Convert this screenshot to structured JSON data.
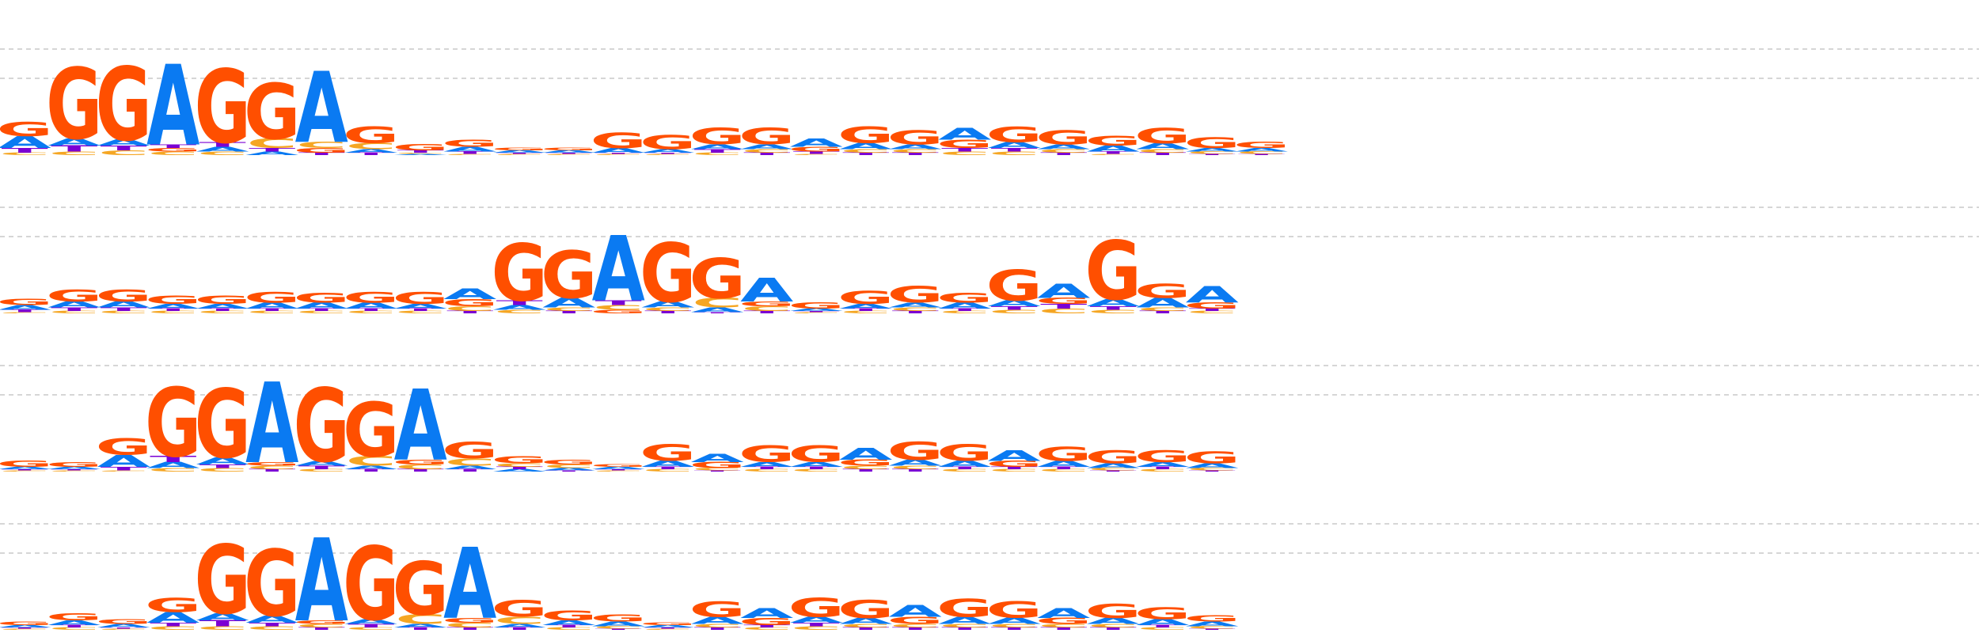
{
  "colors": {
    "A": "#0a7af2",
    "C": "#f5a623",
    "G": "#ff4f00",
    "T": "#7b00d4",
    "grid": "#c8c8c8",
    "background": "#ffffff"
  },
  "chart_data": {
    "type": "sequence-logo",
    "alphabet": [
      "A",
      "C",
      "G",
      "T"
    ],
    "grid": true,
    "rows": [
      {
        "positions": [
          {
            "A": 0.1,
            "C": 0.02,
            "G": 0.12,
            "T": 0.04
          },
          {
            "A": 0.06,
            "C": 0.03,
            "G": 0.6,
            "T": 0.05
          },
          {
            "A": 0.05,
            "C": 0.04,
            "G": 0.62,
            "T": 0.04
          },
          {
            "A": 0.68,
            "C": 0.03,
            "G": 0.03,
            "T": 0.03
          },
          {
            "A": 0.04,
            "C": 0.03,
            "G": 0.62,
            "T": 0.04
          },
          {
            "A": 0.03,
            "C": 0.08,
            "G": 0.47,
            "T": 0.03
          },
          {
            "A": 0.6,
            "C": 0.05,
            "G": 0.04,
            "T": 0.02
          },
          {
            "A": 0.03,
            "C": 0.05,
            "G": 0.14,
            "T": 0.02
          },
          {
            "A": 0.01,
            "C": 0.01,
            "G": 0.05,
            "T": 0.02
          },
          {
            "A": 0.04,
            "C": 0.01,
            "G": 0.06,
            "T": 0.02
          },
          {
            "A": 0.02,
            "C": 0.01,
            "G": 0.02,
            "T": 0.01
          },
          {
            "A": 0.02,
            "C": 0.01,
            "G": 0.02,
            "T": 0.01
          },
          {
            "A": 0.04,
            "C": 0.01,
            "G": 0.13,
            "T": 0.01
          },
          {
            "A": 0.03,
            "C": 0.01,
            "G": 0.12,
            "T": 0.01
          },
          {
            "A": 0.04,
            "C": 0.02,
            "G": 0.14,
            "T": 0.03
          },
          {
            "A": 0.04,
            "C": 0.03,
            "G": 0.14,
            "T": 0.02
          },
          {
            "A": 0.07,
            "C": 0.01,
            "G": 0.04,
            "T": 0.02
          },
          {
            "A": 0.05,
            "C": 0.03,
            "G": 0.14,
            "T": 0.02
          },
          {
            "A": 0.04,
            "C": 0.03,
            "G": 0.12,
            "T": 0.02
          },
          {
            "A": 0.1,
            "C": 0.03,
            "G": 0.07,
            "T": 0.03
          },
          {
            "A": 0.05,
            "C": 0.03,
            "G": 0.13,
            "T": 0.03
          },
          {
            "A": 0.04,
            "C": 0.03,
            "G": 0.12,
            "T": 0.02
          },
          {
            "A": 0.05,
            "C": 0.01,
            "G": 0.08,
            "T": 0.02
          },
          {
            "A": 0.05,
            "C": 0.03,
            "G": 0.13,
            "T": 0.02
          },
          {
            "A": 0.03,
            "C": 0.02,
            "G": 0.09,
            "T": 0.01
          },
          {
            "A": 0.03,
            "C": 0.02,
            "G": 0.05,
            "T": 0.01
          }
        ]
      },
      {
        "positions": [
          {
            "A": 0.04,
            "C": 0.01,
            "G": 0.05,
            "T": 0.02
          },
          {
            "A": 0.05,
            "C": 0.02,
            "G": 0.1,
            "T": 0.03
          },
          {
            "A": 0.05,
            "C": 0.02,
            "G": 0.1,
            "T": 0.03
          },
          {
            "A": 0.04,
            "C": 0.02,
            "G": 0.07,
            "T": 0.02
          },
          {
            "A": 0.04,
            "C": 0.02,
            "G": 0.07,
            "T": 0.02
          },
          {
            "A": 0.05,
            "C": 0.02,
            "G": 0.09,
            "T": 0.02
          },
          {
            "A": 0.05,
            "C": 0.02,
            "G": 0.08,
            "T": 0.02
          },
          {
            "A": 0.05,
            "C": 0.02,
            "G": 0.09,
            "T": 0.02
          },
          {
            "A": 0.04,
            "C": 0.02,
            "G": 0.1,
            "T": 0.02
          },
          {
            "A": 0.09,
            "C": 0.04,
            "G": 0.06,
            "T": 0.02
          },
          {
            "A": 0.04,
            "C": 0.03,
            "G": 0.48,
            "T": 0.04
          },
          {
            "A": 0.08,
            "C": 0.03,
            "G": 0.4,
            "T": 0.02
          },
          {
            "A": 0.55,
            "C": 0.04,
            "G": 0.03,
            "T": 0.04
          },
          {
            "A": 0.05,
            "C": 0.03,
            "G": 0.5,
            "T": 0.02
          },
          {
            "A": 0.04,
            "C": 0.08,
            "G": 0.34,
            "T": 0.01
          },
          {
            "A": 0.2,
            "C": 0.04,
            "G": 0.04,
            "T": 0.02
          },
          {
            "A": 0.02,
            "C": 0.01,
            "G": 0.05,
            "T": 0.01
          },
          {
            "A": 0.04,
            "C": 0.02,
            "G": 0.11,
            "T": 0.02
          },
          {
            "A": 0.04,
            "C": 0.03,
            "G": 0.14,
            "T": 0.02
          },
          {
            "A": 0.05,
            "C": 0.02,
            "G": 0.08,
            "T": 0.02
          },
          {
            "A": 0.05,
            "C": 0.03,
            "G": 0.26,
            "T": 0.03
          },
          {
            "A": 0.12,
            "C": 0.04,
            "G": 0.05,
            "T": 0.04
          },
          {
            "A": 0.06,
            "C": 0.03,
            "G": 0.5,
            "T": 0.03
          },
          {
            "A": 0.08,
            "C": 0.03,
            "G": 0.12,
            "T": 0.02
          },
          {
            "A": 0.14,
            "C": 0.02,
            "G": 0.05,
            "T": 0.02
          }
        ]
      },
      {
        "positions": [
          {
            "A": 0.02,
            "C": 0.01,
            "G": 0.05,
            "T": 0.01
          },
          {
            "A": 0.02,
            "C": 0.01,
            "G": 0.04,
            "T": 0.01
          },
          {
            "A": 0.1,
            "C": 0.01,
            "G": 0.14,
            "T": 0.03
          },
          {
            "A": 0.05,
            "C": 0.03,
            "G": 0.58,
            "T": 0.05
          },
          {
            "A": 0.06,
            "C": 0.03,
            "G": 0.58,
            "T": 0.03
          },
          {
            "A": 0.68,
            "C": 0.03,
            "G": 0.03,
            "T": 0.02
          },
          {
            "A": 0.04,
            "C": 0.02,
            "G": 0.62,
            "T": 0.03
          },
          {
            "A": 0.03,
            "C": 0.08,
            "G": 0.46,
            "T": 0.02
          },
          {
            "A": 0.6,
            "C": 0.04,
            "G": 0.04,
            "T": 0.02
          },
          {
            "A": 0.03,
            "C": 0.06,
            "G": 0.14,
            "T": 0.02
          },
          {
            "A": 0.02,
            "C": 0.03,
            "G": 0.06,
            "T": 0.02
          },
          {
            "A": 0.02,
            "C": 0.03,
            "G": 0.04,
            "T": 0.01
          },
          {
            "A": 0.02,
            "C": 0.01,
            "G": 0.02,
            "T": 0.01
          },
          {
            "A": 0.05,
            "C": 0.02,
            "G": 0.14,
            "T": 0.02
          },
          {
            "A": 0.07,
            "C": 0.02,
            "G": 0.05,
            "T": 0.01
          },
          {
            "A": 0.04,
            "C": 0.02,
            "G": 0.14,
            "T": 0.02
          },
          {
            "A": 0.04,
            "C": 0.02,
            "G": 0.14,
            "T": 0.02
          },
          {
            "A": 0.1,
            "C": 0.03,
            "G": 0.05,
            "T": 0.02
          },
          {
            "A": 0.05,
            "C": 0.03,
            "G": 0.15,
            "T": 0.02
          },
          {
            "A": 0.05,
            "C": 0.02,
            "G": 0.14,
            "T": 0.02
          },
          {
            "A": 0.09,
            "C": 0.02,
            "G": 0.05,
            "T": 0.02
          },
          {
            "A": 0.05,
            "C": 0.02,
            "G": 0.12,
            "T": 0.02
          },
          {
            "A": 0.04,
            "C": 0.02,
            "G": 0.11,
            "T": 0.01
          },
          {
            "A": 0.04,
            "C": 0.02,
            "G": 0.1,
            "T": 0.02
          },
          {
            "A": 0.04,
            "C": 0.02,
            "G": 0.1,
            "T": 0.01
          }
        ]
      },
      {
        "positions": [
          {
            "A": 0.02,
            "C": 0.01,
            "G": 0.03,
            "T": 0.01
          },
          {
            "A": 0.04,
            "C": 0.02,
            "G": 0.06,
            "T": 0.02
          },
          {
            "A": 0.03,
            "C": 0.01,
            "G": 0.04,
            "T": 0.01
          },
          {
            "A": 0.09,
            "C": 0.03,
            "G": 0.12,
            "T": 0.03
          },
          {
            "A": 0.06,
            "C": 0.03,
            "G": 0.58,
            "T": 0.05
          },
          {
            "A": 0.06,
            "C": 0.03,
            "G": 0.56,
            "T": 0.03
          },
          {
            "A": 0.7,
            "C": 0.03,
            "G": 0.03,
            "T": 0.02
          },
          {
            "A": 0.04,
            "C": 0.02,
            "G": 0.62,
            "T": 0.03
          },
          {
            "A": 0.03,
            "C": 0.08,
            "G": 0.45,
            "T": 0.02
          },
          {
            "A": 0.6,
            "C": 0.04,
            "G": 0.04,
            "T": 0.02
          },
          {
            "A": 0.03,
            "C": 0.06,
            "G": 0.14,
            "T": 0.02
          },
          {
            "A": 0.04,
            "C": 0.02,
            "G": 0.08,
            "T": 0.02
          },
          {
            "A": 0.04,
            "C": 0.02,
            "G": 0.06,
            "T": 0.01
          },
          {
            "A": 0.02,
            "C": 0.01,
            "G": 0.02,
            "T": 0.01
          },
          {
            "A": 0.06,
            "C": 0.03,
            "G": 0.13,
            "T": 0.02
          },
          {
            "A": 0.08,
            "C": 0.02,
            "G": 0.06,
            "T": 0.02
          },
          {
            "A": 0.05,
            "C": 0.03,
            "G": 0.16,
            "T": 0.03
          },
          {
            "A": 0.05,
            "C": 0.03,
            "G": 0.15,
            "T": 0.02
          },
          {
            "A": 0.1,
            "C": 0.03,
            "G": 0.06,
            "T": 0.02
          },
          {
            "A": 0.06,
            "C": 0.03,
            "G": 0.15,
            "T": 0.02
          },
          {
            "A": 0.05,
            "C": 0.03,
            "G": 0.14,
            "T": 0.02
          },
          {
            "A": 0.08,
            "C": 0.03,
            "G": 0.05,
            "T": 0.02
          },
          {
            "A": 0.05,
            "C": 0.03,
            "G": 0.12,
            "T": 0.02
          },
          {
            "A": 0.05,
            "C": 0.02,
            "G": 0.1,
            "T": 0.02
          },
          {
            "A": 0.04,
            "C": 0.02,
            "G": 0.05,
            "T": 0.01
          }
        ]
      }
    ]
  }
}
